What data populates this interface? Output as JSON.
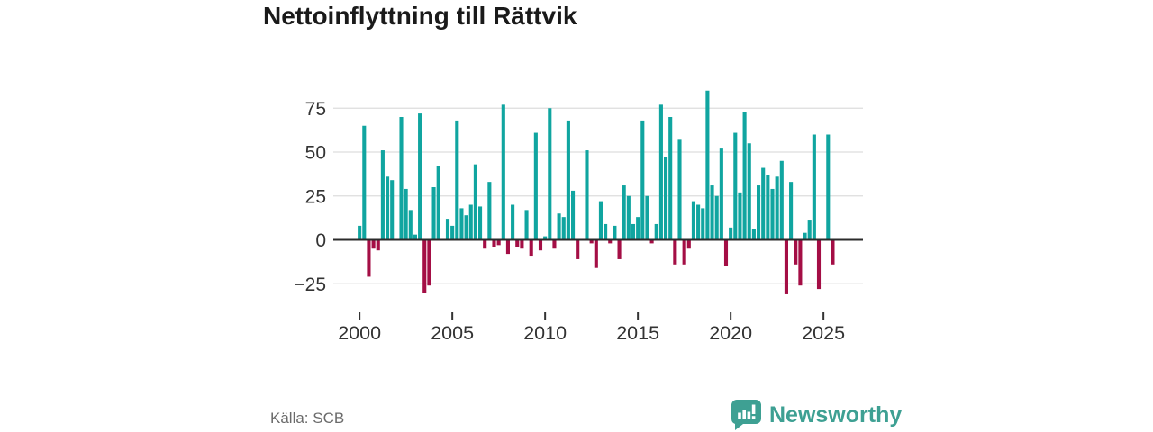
{
  "title": "Nettoinflyttning till Rättvik",
  "source": "Källa: SCB",
  "branding": {
    "logo_text": "Newsworthy",
    "logo_color": "#3EA093"
  },
  "colors": {
    "positive_bar": "#10A5A0",
    "negative_bar": "#A40E45",
    "gridline": "#DDDDDD",
    "zero_line": "#2B2B2B",
    "axis_text": "#333333",
    "title_text": "#1A1A1A",
    "source_text": "#6B6B6B"
  },
  "chart_data": {
    "type": "bar",
    "title": "Nettoinflyttning till Rättvik",
    "xlabel": "",
    "ylabel": "",
    "frequency": "quarterly",
    "x_tick_labels": [
      "2000",
      "2005",
      "2010",
      "2015",
      "2020",
      "2025"
    ],
    "y_tick_labels": [
      "75",
      "50",
      "25",
      "0",
      "−25"
    ],
    "y_ticks": [
      75,
      50,
      25,
      0,
      -25
    ],
    "ylim": [
      -38,
      88
    ],
    "grid": true,
    "legend": false,
    "categories": [
      "2000 Q1",
      "2000 Q2",
      "2000 Q3",
      "2000 Q4",
      "2001 Q1",
      "2001 Q2",
      "2001 Q3",
      "2001 Q4",
      "2002 Q1",
      "2002 Q2",
      "2002 Q3",
      "2002 Q4",
      "2003 Q1",
      "2003 Q2",
      "2003 Q3",
      "2003 Q4",
      "2004 Q1",
      "2004 Q2",
      "2004 Q3",
      "2004 Q4",
      "2005 Q1",
      "2005 Q2",
      "2005 Q3",
      "2005 Q4",
      "2006 Q1",
      "2006 Q2",
      "2006 Q3",
      "2006 Q4",
      "2007 Q1",
      "2007 Q2",
      "2007 Q3",
      "2007 Q4",
      "2008 Q1",
      "2008 Q2",
      "2008 Q3",
      "2008 Q4",
      "2009 Q1",
      "2009 Q2",
      "2009 Q3",
      "2009 Q4",
      "2010 Q1",
      "2010 Q2",
      "2010 Q3",
      "2010 Q4",
      "2011 Q1",
      "2011 Q2",
      "2011 Q3",
      "2011 Q4",
      "2012 Q1",
      "2012 Q2",
      "2012 Q3",
      "2012 Q4",
      "2013 Q1",
      "2013 Q2",
      "2013 Q3",
      "2013 Q4",
      "2014 Q1",
      "2014 Q2",
      "2014 Q3",
      "2014 Q4",
      "2015 Q1",
      "2015 Q2",
      "2015 Q3",
      "2015 Q4",
      "2016 Q1",
      "2016 Q2",
      "2016 Q3",
      "2016 Q4",
      "2017 Q1",
      "2017 Q2",
      "2017 Q3",
      "2017 Q4",
      "2018 Q1",
      "2018 Q2",
      "2018 Q3",
      "2018 Q4",
      "2019 Q1",
      "2019 Q2",
      "2019 Q3",
      "2019 Q4",
      "2020 Q1",
      "2020 Q2",
      "2020 Q3",
      "2020 Q4",
      "2021 Q1",
      "2021 Q2",
      "2021 Q3",
      "2021 Q4",
      "2022 Q1",
      "2022 Q2",
      "2022 Q3",
      "2022 Q4",
      "2023 Q1",
      "2023 Q2",
      "2023 Q3",
      "2023 Q4",
      "2024 Q1",
      "2024 Q2",
      "2024 Q3",
      "2024 Q4",
      "2025 Q1",
      "2025 Q2",
      "2025 Q3"
    ],
    "values": [
      8,
      65,
      -21,
      -5,
      -6,
      51,
      36,
      34,
      0,
      70,
      29,
      17,
      3,
      72,
      -30,
      -26,
      30,
      42,
      0,
      12,
      8,
      68,
      18,
      14,
      20,
      43,
      19,
      -5,
      33,
      -4,
      -3,
      77,
      -8,
      20,
      -4,
      -5,
      17,
      -9,
      61,
      -6,
      2,
      75,
      -5,
      15,
      13,
      68,
      28,
      -11,
      0,
      51,
      -2,
      -16,
      22,
      9,
      -2,
      8,
      -11,
      31,
      25,
      9,
      13,
      68,
      25,
      -2,
      9,
      77,
      47,
      70,
      -14,
      57,
      -14,
      -5,
      22,
      20,
      18,
      85,
      31,
      25,
      52,
      -15,
      7,
      61,
      27,
      73,
      55,
      6,
      31,
      41,
      37,
      29,
      36,
      45,
      -31,
      33,
      -14,
      -26,
      4,
      11,
      60,
      -28,
      0,
      60,
      -14
    ]
  }
}
